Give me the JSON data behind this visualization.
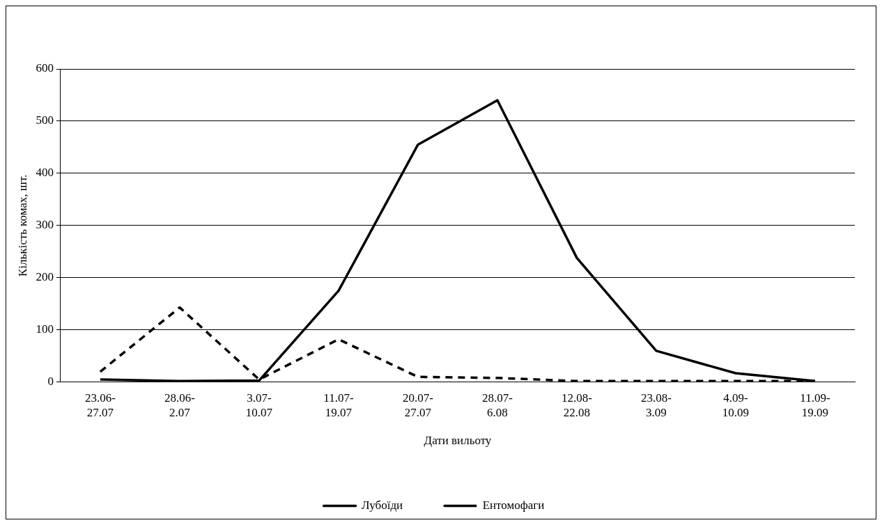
{
  "chart_data": {
    "type": "line",
    "xlabel": "Дати вильоту",
    "ylabel": "Кількість комах, шт.",
    "categories": [
      "23.06-27.07",
      "28.06-2.07",
      "3.07-10.07",
      "11.07-19.07",
      "20.07-27.07",
      "28.07-6.08",
      "12.08-22.08",
      "23.08-3.09",
      "4.09-10.09",
      "11.09-19.09"
    ],
    "series": [
      {
        "name": "Лубоїди",
        "color": "#000000",
        "line_style": "solid",
        "values": [
          5,
          2,
          3,
          175,
          455,
          540,
          238,
          60,
          17,
          2
        ]
      },
      {
        "name": "Ентомофаги",
        "color": "#000000",
        "line_style": "dashed",
        "values": [
          20,
          143,
          5,
          82,
          10,
          8,
          2,
          2,
          2,
          2
        ]
      }
    ],
    "ylim": [
      0,
      600
    ],
    "yticks": [
      0,
      100,
      200,
      300,
      400,
      500,
      600
    ],
    "grid": "y",
    "legend": "bottom",
    "marker": "none"
  }
}
